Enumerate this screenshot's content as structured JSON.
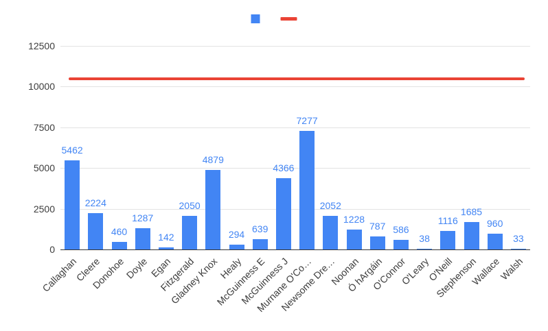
{
  "chart_data": {
    "type": "bar",
    "title": "",
    "xlabel": "",
    "ylabel": "",
    "categories": [
      "Callaghan",
      "Cleere",
      "Donohoe",
      "Doyle",
      "Egan",
      "Fitzgerald",
      "Gladney Knox",
      "Healy",
      "McGuinness E",
      "McGuinness J",
      "Murnane O'Co…",
      "Newsome Dre…",
      "Noonan",
      "Ó hArgáin",
      "O'Connor",
      "O'Leary",
      "O'Neill",
      "Stephenson",
      "Wallace",
      "Walsh"
    ],
    "series": [
      {
        "label": "",
        "type": "bar",
        "marker": "square",
        "color": "#4285f4",
        "values": [
          5462,
          2224,
          460,
          1287,
          142,
          2050,
          4879,
          294,
          639,
          4366,
          7277,
          2052,
          1228,
          787,
          586,
          38,
          1116,
          1685,
          960,
          33
        ]
      },
      {
        "label": "",
        "type": "line",
        "marker": "dash",
        "color": "#ea4335",
        "value": 10500
      }
    ],
    "data_labels": true,
    "ylim": [
      0,
      12500
    ],
    "yticks": [
      0,
      2500,
      5000,
      7500,
      10000,
      12500
    ],
    "grid": true,
    "legend_position": "top-center",
    "colors": {
      "bar": "#4285f4",
      "reference_line": "#ea4335",
      "data_label": "#4285f4",
      "axis_text": "#3c3c3c",
      "gridline": "#e3e3e3",
      "baseline": "#333333",
      "background": "#ffffff"
    }
  }
}
